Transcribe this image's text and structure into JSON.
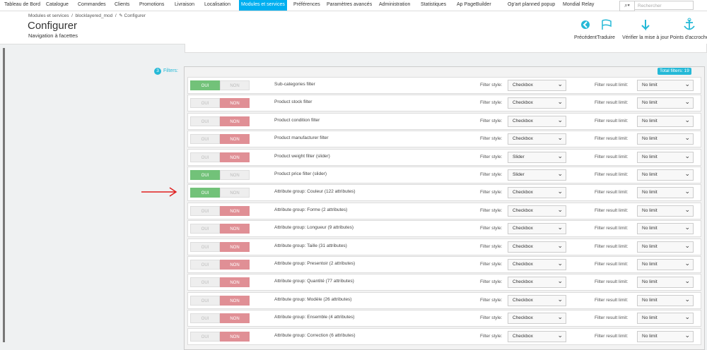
{
  "nav": [
    {
      "label": "Tableau de Bord",
      "active": false
    },
    {
      "label": "Catalogue",
      "active": false
    },
    {
      "label": "Commandes",
      "active": false
    },
    {
      "label": "Clients",
      "active": false
    },
    {
      "label": "Promotions",
      "active": false
    },
    {
      "label": "Livraison",
      "active": false
    },
    {
      "label": "Localisation",
      "active": false
    },
    {
      "label": "Modules et services",
      "active": true
    },
    {
      "label": "Préférences",
      "active": false
    },
    {
      "label": "Paramètres avancés",
      "active": false
    },
    {
      "label": "Administration",
      "active": false
    },
    {
      "label": "Statistiques",
      "active": false
    },
    {
      "label": "Ap PageBuilder",
      "active": false
    }
  ],
  "nav_extra": [
    "Op'art planned popup",
    "Mondial Relay"
  ],
  "search_placeholder": "Rechercher",
  "breadcrumb": [
    "Modules et services",
    "blocklayered_mod",
    "Configurer"
  ],
  "header": {
    "title": "Configurer",
    "subtitle": "Navigation à facettes"
  },
  "toolbar": [
    "Précédent",
    "Traduire",
    "Vérifier la mise à jour",
    "Points d'accroche"
  ],
  "filters": {
    "badge": "3",
    "label": "Filters:",
    "total": "Total filters: 19",
    "toggle_labels": [
      "OUI",
      "NON"
    ],
    "style_label": "Filter style:",
    "limit_label": "Filter result limit:",
    "rows": [
      {
        "name": "Sub-categories filter",
        "enabled": true,
        "style": "Checkbox",
        "limit": "No limit"
      },
      {
        "name": "Product stock filter",
        "enabled": false,
        "style": "Checkbox",
        "limit": "No limit"
      },
      {
        "name": "Product condition filter",
        "enabled": false,
        "style": "Checkbox",
        "limit": "No limit"
      },
      {
        "name": "Product manufacturer filter",
        "enabled": false,
        "style": "Checkbox",
        "limit": "No limit"
      },
      {
        "name": "Product weight filter (slider)",
        "enabled": false,
        "style": "Slider",
        "limit": "No limit"
      },
      {
        "name": "Product price filter (slider)",
        "enabled": true,
        "style": "Slider",
        "limit": "No limit"
      },
      {
        "name": "Attribute group: Couleur (122 attributes)",
        "enabled": true,
        "style": "Checkbox",
        "limit": "No limit"
      },
      {
        "name": "Attribute group: Forme (2 attributes)",
        "enabled": false,
        "style": "Checkbox",
        "limit": "No limit"
      },
      {
        "name": "Attribute group: Longueur (9 attributes)",
        "enabled": false,
        "style": "Checkbox",
        "limit": "No limit"
      },
      {
        "name": "Attribute group: Taille (31 attributes)",
        "enabled": false,
        "style": "Checkbox",
        "limit": "No limit"
      },
      {
        "name": "Attribute group: Presentoir (2 attributes)",
        "enabled": false,
        "style": "Checkbox",
        "limit": "No limit"
      },
      {
        "name": "Attribute group: Quantité (77 attributes)",
        "enabled": false,
        "style": "Checkbox",
        "limit": "No limit"
      },
      {
        "name": "Attribute group: Modèle (26 attributes)",
        "enabled": false,
        "style": "Checkbox",
        "limit": "No limit"
      },
      {
        "name": "Attribute group: Ensemble (4 attributes)",
        "enabled": false,
        "style": "Checkbox",
        "limit": "No limit"
      },
      {
        "name": "Attribute group: Correction (6 attributes)",
        "enabled": false,
        "style": "Checkbox",
        "limit": "No limit"
      }
    ]
  }
}
